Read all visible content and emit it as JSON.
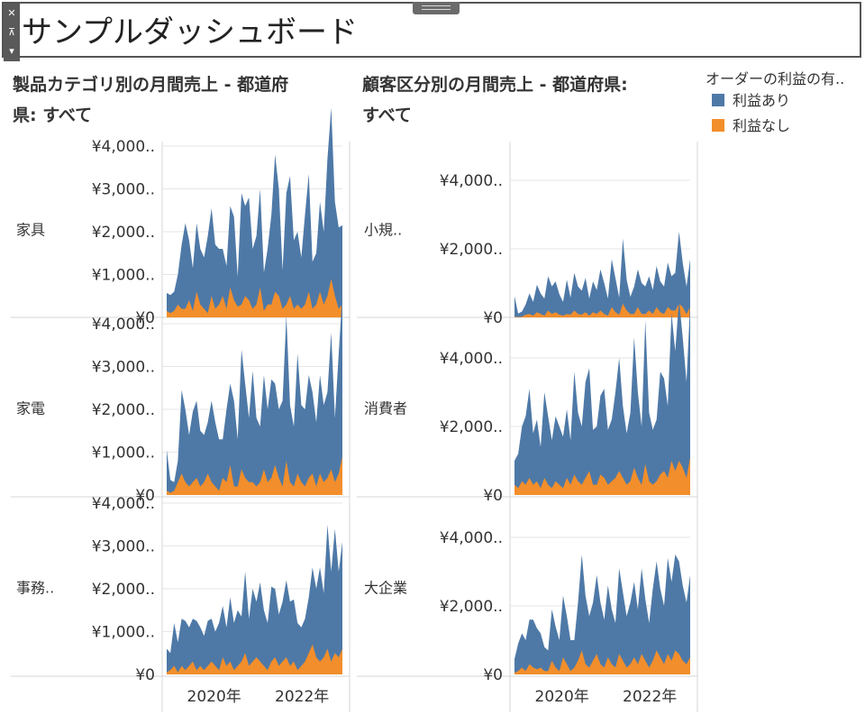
{
  "header": {
    "title": "サンプルダッシュボード",
    "close_icon": "close-icon",
    "pin_icon": "pin-icon",
    "menu_icon": "chevron-down-icon"
  },
  "colors": {
    "profit": "#4e79a7",
    "loss": "#f28e2b",
    "grid": "#e6e6e6",
    "border": "#d4d4d4"
  },
  "legend": {
    "title": "オーダーの利益の有..",
    "items": [
      {
        "label": "利益あり",
        "color": "#4e79a7"
      },
      {
        "label": "利益なし",
        "color": "#f28e2b"
      }
    ]
  },
  "chart_data": [
    {
      "type": "area",
      "title_line1": "製品カテゴリ別の月間売上 - 都道府",
      "title_line2": "県: すべて",
      "x_axis_ticks": [
        "2020年",
        "2022年"
      ],
      "ytick_labels": [
        "¥0",
        "¥1,000..",
        "¥2,000..",
        "¥3,000..",
        "¥4,000.."
      ],
      "ylim": [
        0,
        4000000
      ],
      "stacked": true,
      "panels": [
        {
          "label": "家具",
          "profit": [
            420000,
            420000,
            450000,
            700000,
            1500000,
            2000000,
            1400000,
            1000000,
            1600000,
            1300000,
            1200000,
            1800000,
            2050000,
            1500000,
            1300000,
            1100000,
            1000000,
            1900000,
            1950000,
            700000,
            2600000,
            2100000,
            2400000,
            1400000,
            1600000,
            2300000,
            900000,
            1300000,
            2100000,
            3200000,
            2500000,
            900000,
            2600000,
            2800000,
            1600000,
            1700000,
            1200000,
            2100000,
            2750000,
            1100000,
            1200000,
            2100000,
            1700000,
            3200000,
            4000000,
            2200000,
            1900000,
            1850000
          ],
          "loss": [
            150000,
            100000,
            150000,
            300000,
            200000,
            200000,
            400000,
            150000,
            600000,
            300000,
            200000,
            100000,
            500000,
            200000,
            300000,
            500000,
            200000,
            700000,
            400000,
            250000,
            300000,
            500000,
            400000,
            200000,
            300000,
            700000,
            150000,
            300000,
            300000,
            600000,
            500000,
            200000,
            300000,
            500000,
            200000,
            300000,
            200000,
            300000,
            600000,
            200000,
            300000,
            600000,
            300000,
            500000,
            900000,
            500000,
            200000,
            300000
          ]
        },
        {
          "label": "家電",
          "profit": [
            950000,
            300000,
            200000,
            500000,
            1950000,
            1700000,
            1200000,
            1650000,
            1800000,
            1300000,
            1100000,
            1200000,
            1900000,
            1500000,
            1200000,
            900000,
            1700000,
            1900000,
            2000000,
            1100000,
            2800000,
            2200000,
            1500000,
            2600000,
            1600000,
            1300000,
            2200000,
            1700000,
            2300000,
            1900000,
            1600000,
            2000000,
            3400000,
            1800000,
            1400000,
            2800000,
            1800000,
            1800000,
            2400000,
            1900000,
            1500000,
            2300000,
            1800000,
            2000000,
            3200000,
            1500000,
            2800000,
            3800000
          ],
          "loss": [
            100000,
            50000,
            100000,
            300000,
            500000,
            300000,
            200000,
            300000,
            400000,
            200000,
            300000,
            500000,
            300000,
            200000,
            100000,
            400000,
            300000,
            700000,
            200000,
            200000,
            600000,
            400000,
            300000,
            300000,
            200000,
            300000,
            600000,
            300000,
            400000,
            700000,
            400000,
            200000,
            800000,
            300000,
            200000,
            500000,
            300000,
            200000,
            400000,
            500000,
            200000,
            500000,
            300000,
            400000,
            600000,
            300000,
            500000,
            900000
          ]
        },
        {
          "label": "事務..",
          "profit": [
            550000,
            400000,
            1000000,
            700000,
            1100000,
            1150000,
            900000,
            1000000,
            1150000,
            900000,
            800000,
            1050000,
            1000000,
            800000,
            1100000,
            1200000,
            900000,
            1500000,
            1100000,
            1300000,
            1050000,
            1900000,
            1100000,
            1700000,
            1300000,
            1850000,
            1300000,
            1100000,
            1750000,
            1600000,
            1200000,
            1400000,
            1800000,
            1500000,
            1450000,
            1100000,
            900000,
            1000000,
            1300000,
            1800000,
            1600000,
            2200000,
            1500000,
            2900000,
            2100000,
            2900000,
            2000000,
            2500000
          ],
          "loss": [
            50000,
            100000,
            200000,
            50000,
            200000,
            100000,
            200000,
            300000,
            100000,
            200000,
            100000,
            200000,
            300000,
            200000,
            100000,
            400000,
            200000,
            300000,
            100000,
            200000,
            300000,
            500000,
            200000,
            300000,
            400000,
            300000,
            200000,
            100000,
            300000,
            400000,
            200000,
            300000,
            400000,
            200000,
            300000,
            100000,
            200000,
            300000,
            500000,
            700000,
            400000,
            300000,
            400000,
            600000,
            300000,
            500000,
            400000,
            600000
          ]
        }
      ]
    },
    {
      "type": "area",
      "title_line1": "顧客区分別の月間売上 - 都道府県:",
      "title_line2": "すべて",
      "x_axis_ticks": [
        "2020年",
        "2022年"
      ],
      "ytick_labels": [
        "¥0",
        "¥2,000..",
        "¥4,000.."
      ],
      "ylim": [
        0,
        5000000
      ],
      "stacked": true,
      "panels": [
        {
          "label": "小規..",
          "profit": [
            600000,
            100000,
            150000,
            300000,
            600000,
            400000,
            800000,
            600000,
            500000,
            1000000,
            800000,
            900000,
            600000,
            400000,
            1000000,
            500000,
            1100000,
            800000,
            700000,
            1000000,
            500000,
            900000,
            700000,
            1200000,
            900000,
            500000,
            1400000,
            1000000,
            500000,
            1900000,
            900000,
            500000,
            800000,
            1100000,
            900000,
            800000,
            1000000,
            700000,
            1200000,
            900000,
            800000,
            1300000,
            1000000,
            1100000,
            2100000,
            1300000,
            800000,
            1400000
          ],
          "loss": [
            20000,
            10000,
            20000,
            80000,
            100000,
            50000,
            150000,
            100000,
            50000,
            200000,
            100000,
            150000,
            80000,
            50000,
            100000,
            80000,
            200000,
            100000,
            80000,
            150000,
            50000,
            150000,
            100000,
            200000,
            100000,
            50000,
            300000,
            150000,
            80000,
            400000,
            200000,
            100000,
            100000,
            300000,
            100000,
            100000,
            200000,
            100000,
            300000,
            150000,
            100000,
            300000,
            200000,
            200000,
            400000,
            300000,
            100000,
            300000
          ]
        },
        {
          "label": "消費者",
          "profit": [
            700000,
            1000000,
            1600000,
            2000000,
            2600000,
            1500000,
            1800000,
            1200000,
            2500000,
            2000000,
            1400000,
            1900000,
            1700000,
            1500000,
            2000000,
            1300000,
            3000000,
            2000000,
            1700000,
            2800000,
            3000000,
            1600000,
            1700000,
            2300000,
            2600000,
            1600000,
            1800000,
            2500000,
            3300000,
            2100000,
            1500000,
            2000000,
            3800000,
            2500000,
            1700000,
            4200000,
            2000000,
            1600000,
            1800000,
            3000000,
            2700000,
            2100000,
            4300000,
            3500000,
            4700000,
            3800000,
            2800000,
            4500000
          ],
          "loss": [
            300000,
            200000,
            400000,
            300000,
            500000,
            300000,
            400000,
            200000,
            500000,
            300000,
            200000,
            400000,
            300000,
            200000,
            500000,
            300000,
            600000,
            400000,
            300000,
            500000,
            700000,
            300000,
            300000,
            600000,
            500000,
            300000,
            400000,
            500000,
            700000,
            500000,
            300000,
            400000,
            800000,
            500000,
            300000,
            900000,
            400000,
            300000,
            400000,
            600000,
            700000,
            500000,
            1000000,
            700000,
            1000000,
            800000,
            500000,
            1100000
          ]
        },
        {
          "label": "大企業",
          "profit": [
            400000,
            800000,
            1000000,
            900000,
            1300000,
            1400000,
            1200000,
            1000000,
            700000,
            600000,
            1500000,
            1200000,
            900000,
            1800000,
            1400000,
            900000,
            800000,
            1700000,
            2800000,
            2000000,
            1500000,
            1700000,
            2300000,
            1800000,
            1400000,
            2100000,
            1600000,
            1300000,
            2500000,
            2000000,
            1500000,
            1800000,
            2200000,
            1600000,
            2500000,
            1800000,
            1300000,
            2100000,
            2600000,
            2000000,
            1700000,
            2800000,
            2300000,
            2800000,
            2700000,
            2200000,
            1800000,
            2400000
          ],
          "loss": [
            50000,
            100000,
            200000,
            100000,
            300000,
            200000,
            150000,
            200000,
            100000,
            100000,
            400000,
            200000,
            100000,
            500000,
            300000,
            100000,
            200000,
            400000,
            700000,
            300000,
            200000,
            400000,
            600000,
            300000,
            200000,
            500000,
            300000,
            200000,
            600000,
            400000,
            200000,
            300000,
            500000,
            300000,
            600000,
            400000,
            200000,
            400000,
            700000,
            500000,
            300000,
            600000,
            400000,
            700000,
            600000,
            400000,
            300000,
            500000
          ]
        }
      ]
    }
  ]
}
